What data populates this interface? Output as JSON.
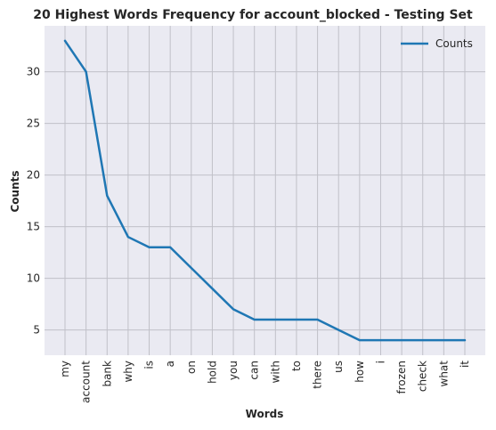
{
  "chart_data": {
    "type": "line",
    "title": "20 Highest Words Frequency for account_blocked - Testing Set",
    "xlabel": "Words",
    "ylabel": "Counts",
    "categories": [
      "my",
      "account",
      "bank",
      "why",
      "is",
      "a",
      "on",
      "hold",
      "you",
      "can",
      "with",
      "to",
      "there",
      "us",
      "how",
      "i",
      "frozen",
      "check",
      "what",
      "it"
    ],
    "series": [
      {
        "name": "Counts",
        "values": [
          33,
          30,
          18,
          14,
          13,
          13,
          11,
          9,
          7,
          6,
          6,
          6,
          6,
          5,
          4,
          4,
          4,
          4,
          4,
          4
        ]
      }
    ],
    "ylim": [
      2.55,
      34.45
    ],
    "yticks": [
      5,
      10,
      15,
      20,
      25,
      30
    ],
    "grid": true,
    "legend_position": "top-right",
    "colors": {
      "line": "#1f77b4",
      "plot_background": "#eaeaf2",
      "grid": "#c0c0c8"
    }
  }
}
